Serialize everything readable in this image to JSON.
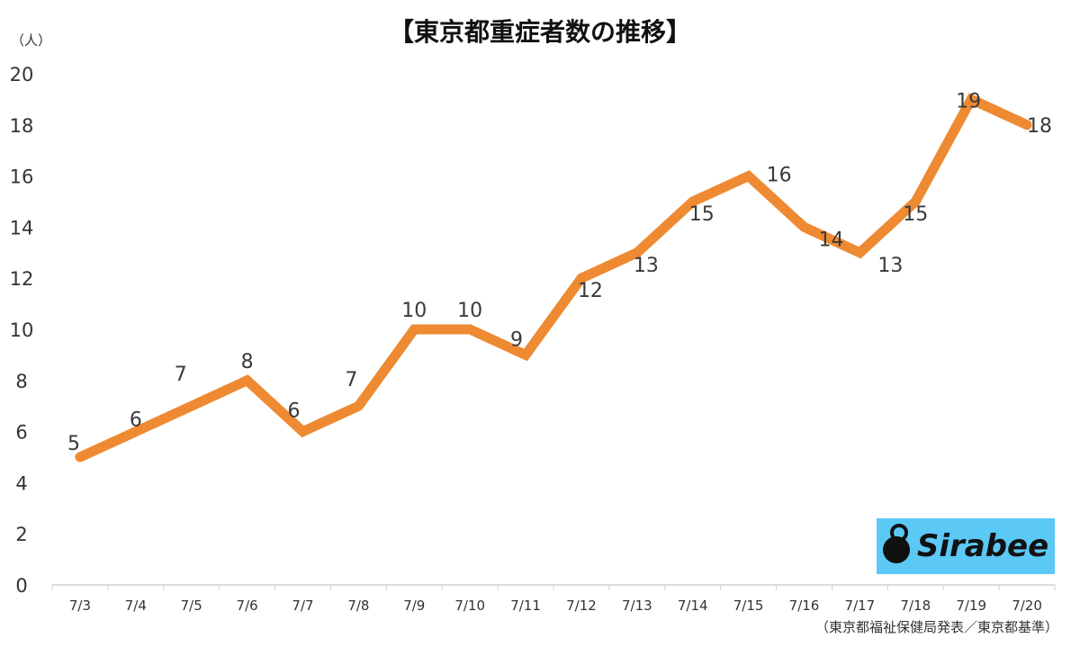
{
  "chart_data": {
    "type": "line",
    "title": "【東京都重症者数の推移】",
    "ylabel": "（人）",
    "categories": [
      "7/3",
      "7/4",
      "7/5",
      "7/6",
      "7/7",
      "7/8",
      "7/9",
      "7/10",
      "7/11",
      "7/12",
      "7/13",
      "7/14",
      "7/15",
      "7/16",
      "7/17",
      "7/18",
      "7/19",
      "7/20"
    ],
    "series": [
      {
        "values": [
          5,
          6,
          7,
          8,
          6,
          7,
          10,
          10,
          9,
          12,
          13,
          15,
          16,
          14,
          13,
          15,
          19,
          18
        ],
        "color": "#ee8a32"
      }
    ],
    "ylim": [
      0,
      20
    ],
    "yticks": [
      0,
      2,
      4,
      6,
      8,
      10,
      12,
      14,
      16,
      18,
      20
    ],
    "grid": false,
    "data_labels": true,
    "source": "（東京都福祉保健局発表／東京都基準）"
  },
  "logo": {
    "text": "Sirabee",
    "background": "#5bc8f5"
  }
}
